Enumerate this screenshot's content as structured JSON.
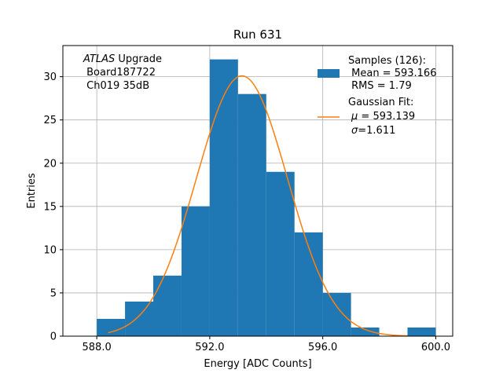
{
  "chart_data": {
    "type": "bar",
    "title": "Run 631",
    "xlabel": "Energy [ADC Counts]",
    "ylabel": "Entries",
    "xlim": [
      586.8,
      600.6
    ],
    "ylim": [
      0,
      33.6
    ],
    "xticks": [
      588.0,
      592.0,
      596.0,
      600.0
    ],
    "xtick_labels": [
      "588.0",
      "592.0",
      "596.0",
      "600.0"
    ],
    "yticks": [
      0,
      5,
      10,
      15,
      20,
      25,
      30
    ],
    "ytick_labels": [
      "0",
      "5",
      "10",
      "15",
      "20",
      "25",
      "30"
    ],
    "grid": true,
    "bin_edges": [
      588,
      589,
      590,
      591,
      592,
      593,
      594,
      595,
      596,
      597,
      598,
      599,
      600
    ],
    "counts": [
      2,
      4,
      7,
      15,
      32,
      28,
      19,
      12,
      5,
      1,
      0,
      1
    ],
    "bar_color": "#1f77b4",
    "fit": {
      "type": "gaussian",
      "amplitude": 30.1,
      "mu": 593.139,
      "sigma": 1.611,
      "x_range": [
        588.4,
        599.0
      ],
      "color": "#ff7f0e"
    },
    "annotation": {
      "italic": "ATLAS",
      "line1_rest": " Upgrade",
      "line2": " Board187722",
      "line3": " Ch019 35dB"
    },
    "legend": {
      "position": "upper right",
      "samples": {
        "line1": "Samples (126):",
        "line2": " Mean = 593.166",
        "line3": " RMS = 1.79"
      },
      "fit": {
        "line1": "Gaussian Fit:",
        "mu_symbol": "μ",
        "mu_value": " = 593.139",
        "sigma_symbol": "σ",
        "sigma_value": "=1.611"
      }
    }
  }
}
